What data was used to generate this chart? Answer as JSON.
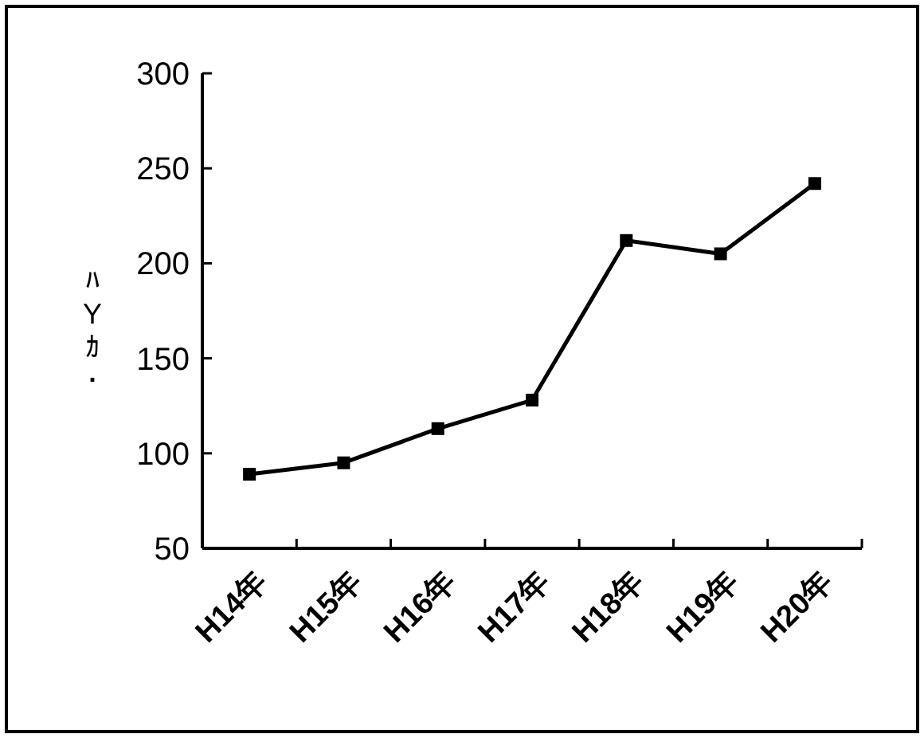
{
  "chart_data": {
    "type": "line",
    "ylabel": "ﾊYｶ･",
    "categories": [
      "H14年",
      "H15年",
      "H16年",
      "H17年",
      "H18年",
      "H19年",
      "H20年"
    ],
    "series": [
      {
        "color": "#000000",
        "values": [
          89,
          95,
          113,
          128,
          212,
          205,
          242
        ]
      }
    ],
    "ylim": [
      50,
      300
    ],
    "yticks": [
      50,
      100,
      150,
      200,
      250,
      300
    ],
    "marker": "square",
    "line_style": "solid",
    "grid": false
  }
}
